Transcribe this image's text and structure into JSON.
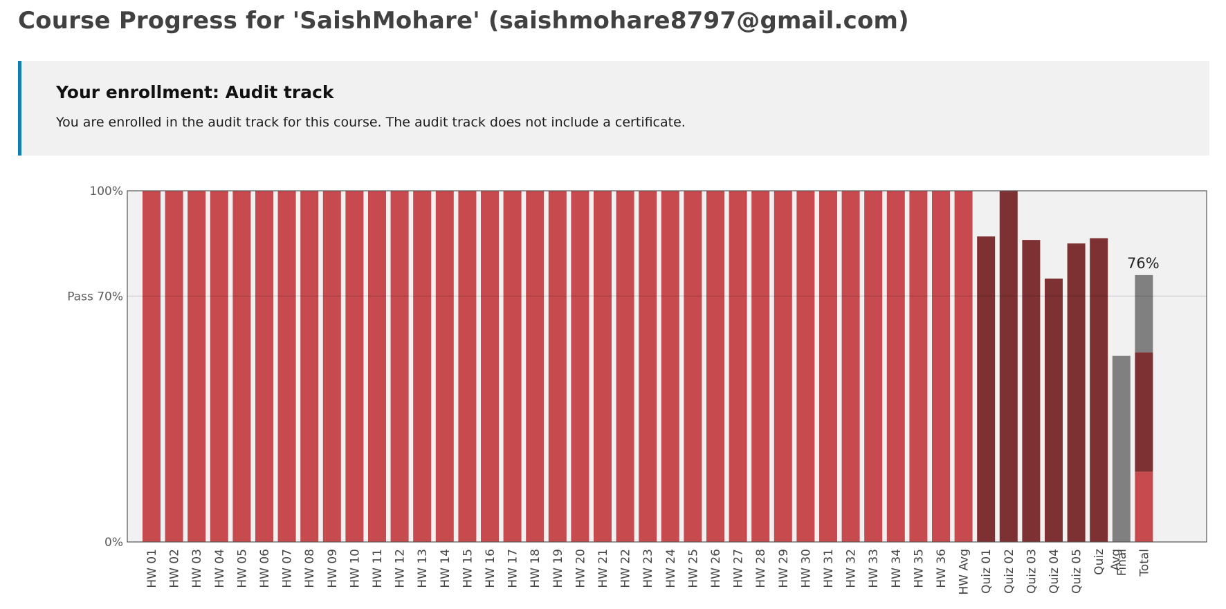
{
  "page": {
    "title": "Course Progress for 'SaishMohare' (saishmohare8797@gmail.com)"
  },
  "enrollment": {
    "title": "Your enrollment: Audit track",
    "message": "You are enrolled in the audit track for this course. The audit track does not include a certificate."
  },
  "colors": {
    "homework": "#c64a4e",
    "quiz": "#7e3133",
    "unattempted": "#808080",
    "plot_background": "#f1f1f1",
    "accent_border": "#0f7fb5"
  },
  "chart_data": {
    "type": "bar",
    "ylim": [
      0,
      100
    ],
    "y_ticks": [
      {
        "value": 0,
        "label": "0%"
      },
      {
        "value": 70,
        "label": "Pass 70%"
      },
      {
        "value": 100,
        "label": "100%"
      }
    ],
    "pass_threshold": 70,
    "categories": [
      "HW 01",
      "HW 02",
      "HW 03",
      "HW 04",
      "HW 05",
      "HW 06",
      "HW 07",
      "HW 08",
      "HW 09",
      "HW 10",
      "HW 11",
      "HW 12",
      "HW 13",
      "HW 14",
      "HW 15",
      "HW 16",
      "HW 17",
      "HW 18",
      "HW 19",
      "HW 20",
      "HW 21",
      "HW 22",
      "HW 23",
      "HW 24",
      "HW 25",
      "HW 26",
      "HW 27",
      "HW 28",
      "HW 29",
      "HW 30",
      "HW 31",
      "HW 32",
      "HW 33",
      "HW 34",
      "HW 35",
      "HW 36",
      "HW Avg",
      "Quiz 01",
      "Quiz 02",
      "Quiz 03",
      "Quiz 04",
      "Quiz 05",
      "Quiz Avg",
      "Final",
      "Total"
    ],
    "series": [
      {
        "values": [
          100,
          100,
          100,
          100,
          100,
          100,
          100,
          100,
          100,
          100,
          100,
          100,
          100,
          100,
          100,
          100,
          100,
          100,
          100,
          100,
          100,
          100,
          100,
          100,
          100,
          100,
          100,
          100,
          100,
          100,
          100,
          100,
          100,
          100,
          100,
          100,
          100,
          null,
          null,
          null,
          null,
          null,
          null,
          null,
          null
        ]
      },
      {
        "values": [
          null,
          null,
          null,
          null,
          null,
          null,
          null,
          null,
          null,
          null,
          null,
          null,
          null,
          null,
          null,
          null,
          null,
          null,
          null,
          null,
          null,
          null,
          null,
          null,
          null,
          null,
          null,
          null,
          null,
          null,
          null,
          null,
          null,
          null,
          null,
          null,
          null,
          87,
          100,
          86,
          75,
          85,
          86.5,
          null,
          null
        ]
      },
      {
        "values": [
          null,
          null,
          null,
          null,
          null,
          null,
          null,
          null,
          null,
          null,
          null,
          null,
          null,
          null,
          null,
          null,
          null,
          null,
          null,
          null,
          null,
          null,
          null,
          null,
          null,
          null,
          null,
          null,
          null,
          null,
          null,
          null,
          null,
          null,
          null,
          null,
          null,
          null,
          null,
          null,
          null,
          null,
          null,
          53,
          null
        ]
      }
    ],
    "total": {
      "segments": [
        {
          "value": 20
        },
        {
          "value": 34
        },
        {
          "value": 22
        }
      ],
      "label": "76%"
    }
  }
}
